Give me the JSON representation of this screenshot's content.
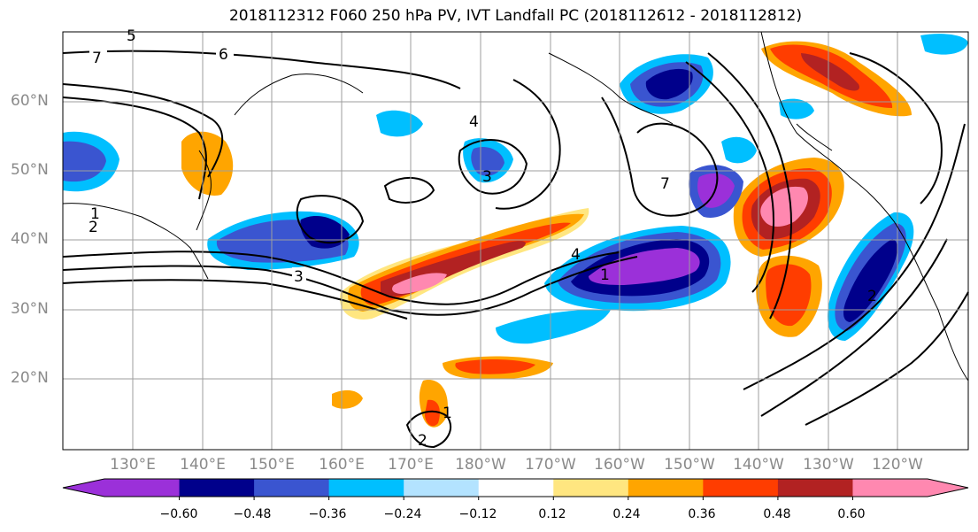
{
  "title": "2018112312 F060 250 hPa PV, IVT Landfall PC (2018112612 - 2018112812)",
  "lat_labels": [
    "60°N",
    "50°N",
    "40°N",
    "30°N",
    "20°N"
  ],
  "lon_labels": [
    "130°E",
    "140°E",
    "150°E",
    "160°E",
    "170°E",
    "180°W",
    "170°W",
    "160°W",
    "150°W",
    "140°W",
    "130°W",
    "120°W"
  ],
  "contour_labels": [
    "7",
    "6",
    "5",
    "4",
    "3",
    "2",
    "1",
    "7",
    "4",
    "3",
    "2",
    "1",
    "1",
    "2"
  ],
  "colorbar": {
    "ticks": [
      "−0.60",
      "−0.48",
      "−0.36",
      "−0.24",
      "−0.12",
      "0.12",
      "0.24",
      "0.36",
      "0.48",
      "0.60"
    ],
    "colors": [
      "#9b30d9",
      "#00008b",
      "#3a55d0",
      "#00bfff",
      "#b3e3ff",
      "#ffffff",
      "#ffe680",
      "#ffa500",
      "#ff3d00",
      "#b22222",
      "#ff88b0"
    ]
  }
}
